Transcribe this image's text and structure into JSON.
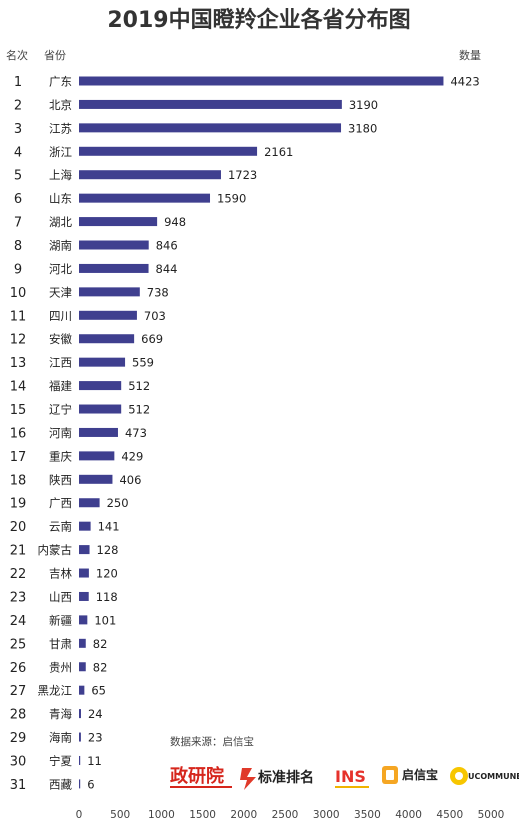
{
  "header": {
    "title": "2019中国瞪羚企业各省分布图",
    "col_rank": "名次",
    "col_province": "省份",
    "col_count": "数量"
  },
  "footer": {
    "source": "数据来源：启信宝",
    "logos": [
      {
        "name": "政研院",
        "color": "#d6261c"
      },
      {
        "name": "标准排名",
        "color": "#222222"
      },
      {
        "name": "INS",
        "color": "#e6322b"
      },
      {
        "name": "启信宝",
        "color": "#222222"
      },
      {
        "name": "UCOMMUNE",
        "color": "#222222"
      }
    ]
  },
  "colors": {
    "bar": "#3f3f8f",
    "text": "#222222",
    "muted": "#444444",
    "axis": "#555555"
  },
  "chart_data": {
    "type": "bar",
    "orientation": "horizontal",
    "title": "2019中国瞪羚企业各省分布图",
    "ranks": [
      1,
      2,
      3,
      4,
      5,
      6,
      7,
      8,
      9,
      10,
      11,
      12,
      13,
      14,
      15,
      16,
      17,
      18,
      19,
      20,
      21,
      22,
      23,
      24,
      25,
      26,
      27,
      28,
      29,
      30,
      31
    ],
    "categories": [
      "广东",
      "北京",
      "江苏",
      "浙江",
      "上海",
      "山东",
      "湖北",
      "湖南",
      "河北",
      "天津",
      "四川",
      "安徽",
      "江西",
      "福建",
      "辽宁",
      "河南",
      "重庆",
      "陕西",
      "广西",
      "云南",
      "内蒙古",
      "吉林",
      "山西",
      "新疆",
      "甘肃",
      "贵州",
      "黑龙江",
      "青海",
      "海南",
      "宁夏",
      "西藏"
    ],
    "values": [
      4423,
      3190,
      3180,
      2161,
      1723,
      1590,
      948,
      846,
      844,
      738,
      703,
      669,
      559,
      512,
      512,
      473,
      429,
      406,
      250,
      141,
      128,
      120,
      118,
      101,
      82,
      82,
      65,
      24,
      23,
      11,
      6
    ],
    "xlim": [
      0,
      5000
    ],
    "xticks": [
      0,
      500,
      1000,
      1500,
      2000,
      2500,
      3000,
      3500,
      4000,
      4500,
      5000
    ],
    "grid": false,
    "legend": "none"
  }
}
